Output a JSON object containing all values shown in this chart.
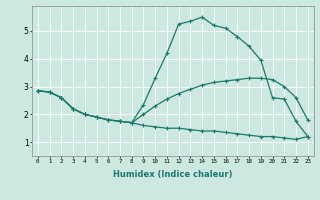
{
  "xlabel": "Humidex (Indice chaleur)",
  "bg_color": "#cce8e0",
  "line_color": "#1a7a6e",
  "grid_color": "#ffffff",
  "xlim": [
    -0.5,
    23.5
  ],
  "ylim": [
    0.5,
    5.9
  ],
  "xticks": [
    0,
    1,
    2,
    3,
    4,
    5,
    6,
    7,
    8,
    9,
    10,
    11,
    12,
    13,
    14,
    15,
    16,
    17,
    18,
    19,
    20,
    21,
    22,
    23
  ],
  "yticks": [
    1,
    2,
    3,
    4,
    5
  ],
  "line1_x": [
    0,
    1,
    2,
    3,
    4,
    5,
    6,
    7,
    8,
    9,
    10,
    11,
    12,
    13,
    14,
    15,
    16,
    17,
    18,
    19,
    20,
    21,
    22,
    23
  ],
  "line1_y": [
    2.85,
    2.8,
    2.6,
    2.2,
    2.0,
    1.9,
    1.8,
    1.75,
    1.7,
    2.35,
    3.3,
    4.2,
    5.25,
    5.35,
    5.5,
    5.2,
    5.1,
    4.8,
    4.45,
    3.95,
    2.6,
    2.55,
    1.75,
    1.2
  ],
  "line2_x": [
    0,
    1,
    2,
    3,
    4,
    5,
    6,
    7,
    8,
    9,
    10,
    11,
    12,
    13,
    14,
    15,
    16,
    17,
    18,
    19,
    20,
    21,
    22,
    23
  ],
  "line2_y": [
    2.85,
    2.8,
    2.6,
    2.2,
    2.0,
    1.9,
    1.8,
    1.75,
    1.7,
    2.0,
    2.3,
    2.55,
    2.75,
    2.9,
    3.05,
    3.15,
    3.2,
    3.25,
    3.3,
    3.3,
    3.25,
    3.0,
    2.6,
    1.8
  ],
  "line3_x": [
    0,
    1,
    2,
    3,
    4,
    5,
    6,
    7,
    8,
    9,
    10,
    11,
    12,
    13,
    14,
    15,
    16,
    17,
    18,
    19,
    20,
    21,
    22,
    23
  ],
  "line3_y": [
    2.85,
    2.8,
    2.6,
    2.2,
    2.0,
    1.9,
    1.8,
    1.75,
    1.7,
    1.6,
    1.55,
    1.5,
    1.5,
    1.45,
    1.4,
    1.4,
    1.35,
    1.3,
    1.25,
    1.2,
    1.2,
    1.15,
    1.1,
    1.2
  ]
}
